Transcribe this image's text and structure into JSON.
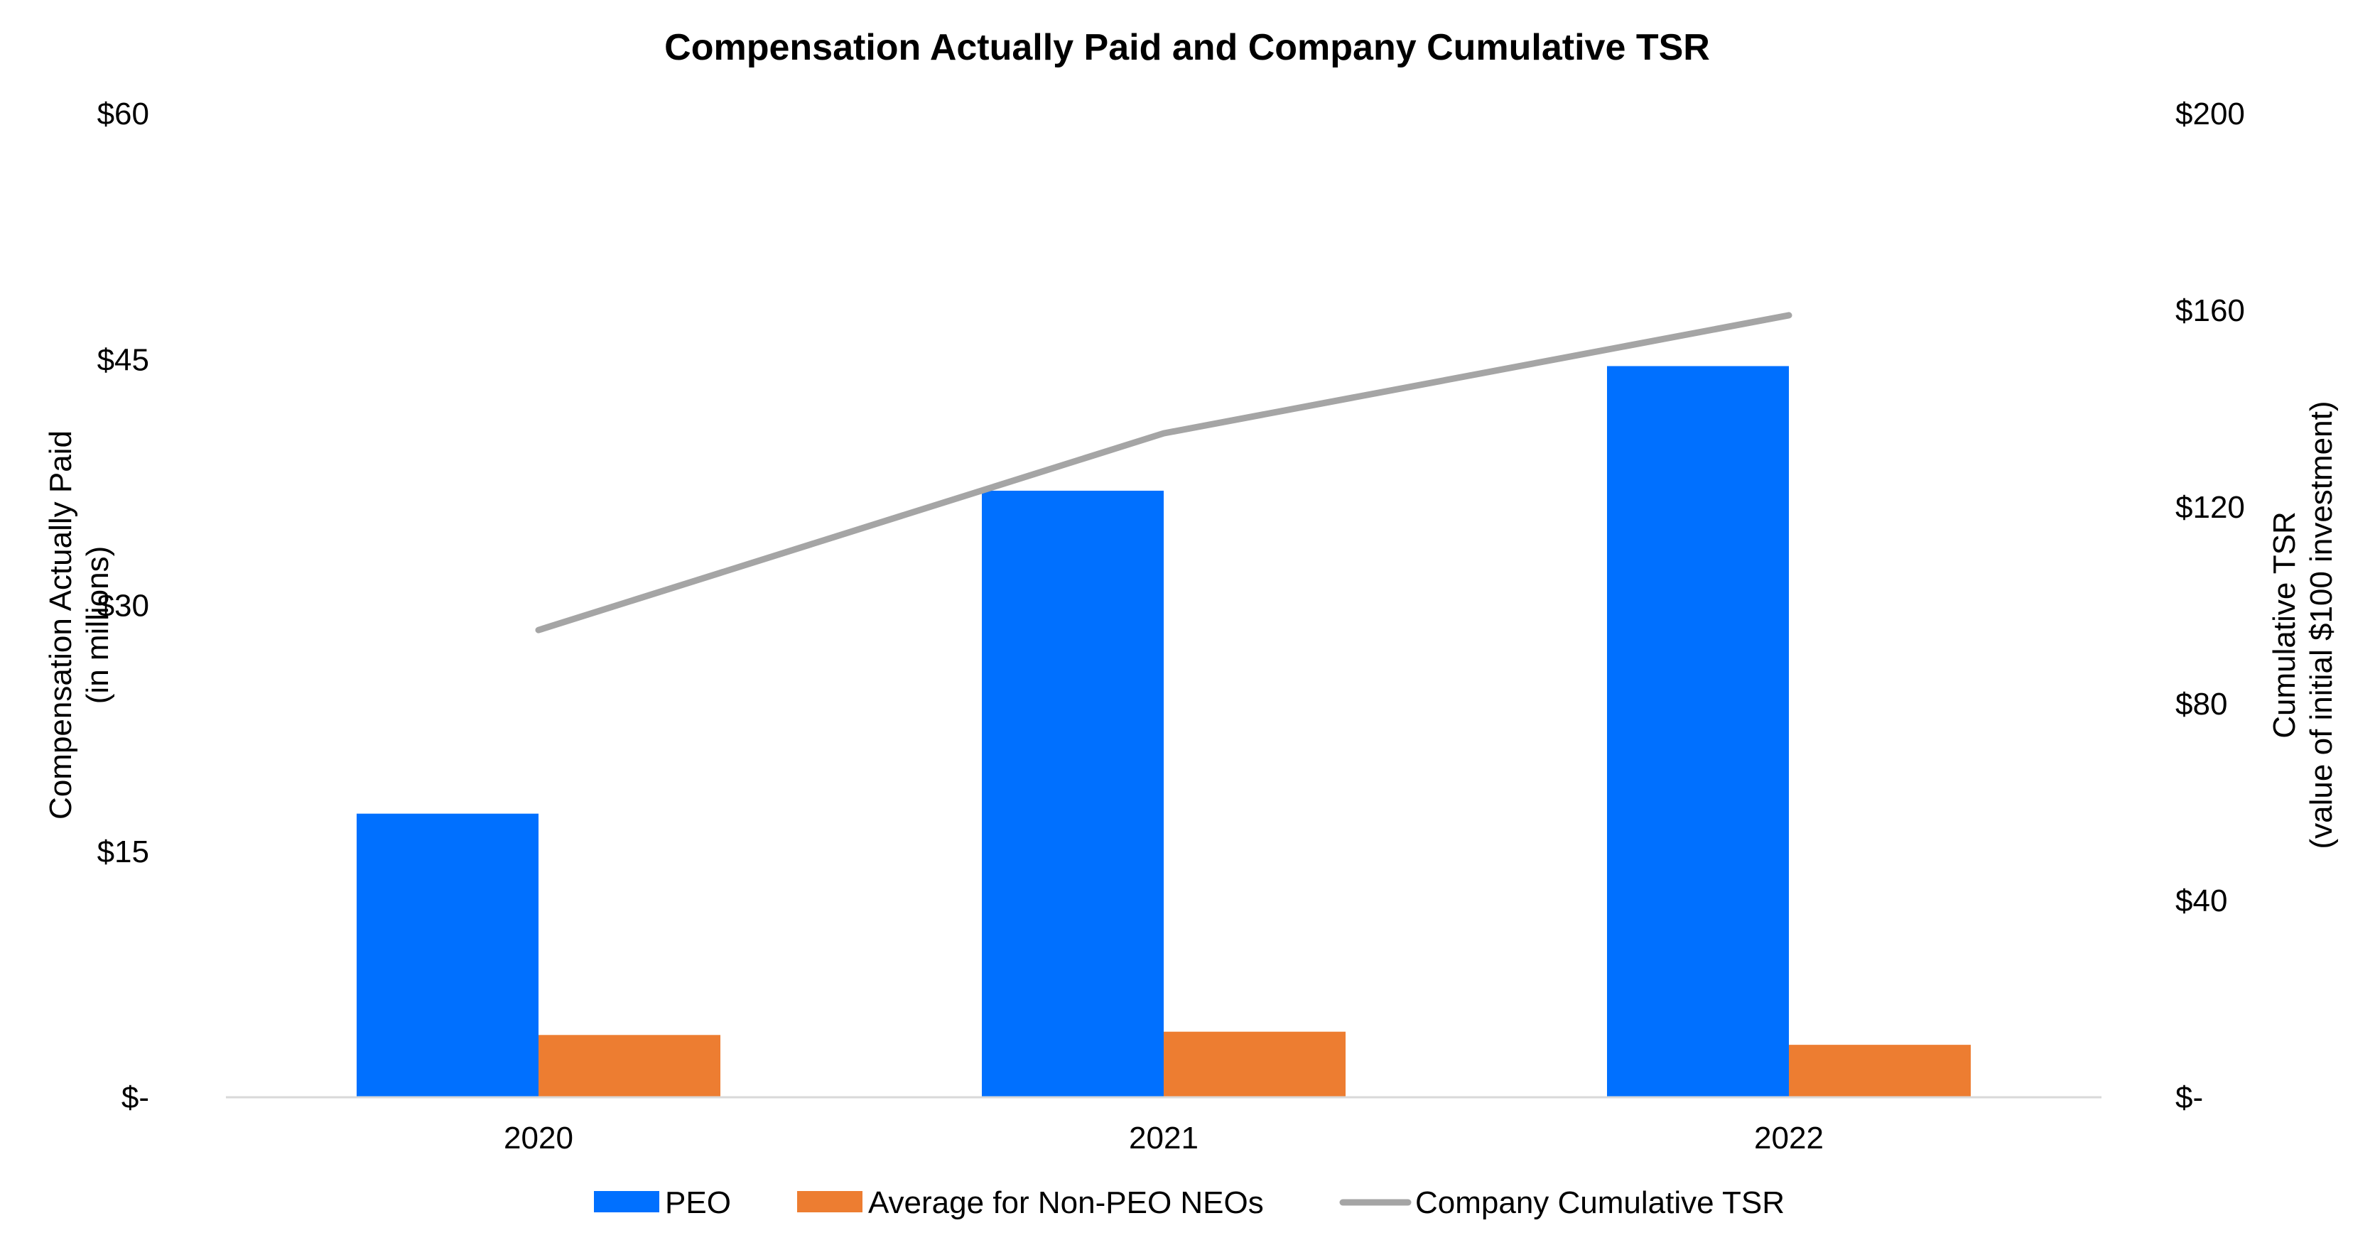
{
  "chart_data": {
    "type": "bar",
    "title": "Compensation Actually Paid and Company Cumulative TSR",
    "categories": [
      "2020",
      "2021",
      "2022"
    ],
    "series": [
      {
        "name": "PEO",
        "kind": "bar",
        "axis": "left",
        "color": "#0070FF",
        "values": [
          17.3,
          37.0,
          44.6
        ]
      },
      {
        "name": "Average for Non-PEO NEOs",
        "kind": "bar",
        "axis": "left",
        "color": "#ED7D31",
        "values": [
          3.8,
          4.0,
          3.2
        ]
      },
      {
        "name": "Company Cumulative TSR",
        "kind": "line",
        "axis": "right",
        "color": "#A5A5A5",
        "values": [
          95,
          135,
          159
        ]
      }
    ],
    "left_axis": {
      "label_line1": "Compensation Actually Paid",
      "label_line2": "(in millions)",
      "ylim": [
        0,
        60
      ],
      "ticks": [
        0,
        15,
        30,
        45,
        60
      ],
      "tick_labels": [
        "$-",
        "$15",
        "$30",
        "$45",
        "$60"
      ]
    },
    "right_axis": {
      "label_line1": "Cumulative TSR",
      "label_line2": "(value of initial $100 investment)",
      "ylim": [
        0,
        200
      ],
      "ticks": [
        0,
        40,
        80,
        120,
        160,
        200
      ],
      "tick_labels": [
        "$-",
        "$40",
        "$80",
        "$120",
        "$160",
        "$200"
      ]
    },
    "grid": false,
    "legend_position": "bottom"
  }
}
